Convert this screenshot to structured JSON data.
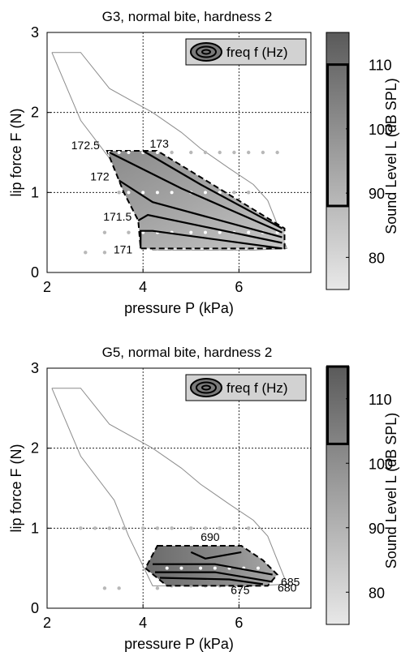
{
  "chart_data": [
    {
      "type": "contour",
      "title": "G3, normal bite, hardness 2",
      "xlabel": "pressure P (kPa)",
      "ylabel": "lip force F (N)",
      "xlim": [
        2,
        7.5
      ],
      "ylim": [
        0,
        3
      ],
      "xticks": [
        "2",
        "4",
        "6"
      ],
      "yticks": [
        "0",
        "1",
        "2",
        "3"
      ],
      "grid": "dotted",
      "legend": {
        "label": "freq f (Hz)",
        "position": "top-right"
      },
      "colorbar": {
        "label": "Sound Level L (dB SPL)",
        "range": [
          75,
          115
        ],
        "ticks": [
          "80",
          "90",
          "100",
          "110"
        ],
        "highlight": [
          88,
          110
        ]
      },
      "outline": [
        [
          2.1,
          2.75
        ],
        [
          2.7,
          2.75
        ],
        [
          3.3,
          2.3
        ],
        [
          4.2,
          2.0
        ],
        [
          4.8,
          1.75
        ],
        [
          5.2,
          1.55
        ],
        [
          5.8,
          1.3
        ],
        [
          6.3,
          1.1
        ],
        [
          6.6,
          0.9
        ],
        [
          7.0,
          0.3
        ],
        [
          6.3,
          0.28
        ],
        [
          4.2,
          0.28
        ],
        [
          3.7,
          0.9
        ],
        [
          3.4,
          1.35
        ],
        [
          2.7,
          1.9
        ],
        [
          2.1,
          2.75
        ]
      ],
      "region": [
        [
          3.25,
          1.52
        ],
        [
          4.3,
          1.52
        ],
        [
          6.95,
          0.55
        ],
        [
          6.95,
          0.3
        ],
        [
          3.95,
          0.3
        ],
        [
          3.9,
          0.65
        ],
        [
          3.6,
          1.0
        ],
        [
          3.25,
          1.52
        ]
      ],
      "contours": [
        {
          "label": "171",
          "points": [
            [
              3.95,
              0.3
            ],
            [
              3.95,
              0.52
            ],
            [
              4.2,
              0.52
            ],
            [
              6.9,
              0.3
            ]
          ]
        },
        {
          "label": "171.5",
          "points": [
            [
              3.9,
              0.65
            ],
            [
              4.1,
              0.72
            ],
            [
              6.9,
              0.37
            ]
          ]
        },
        {
          "label": "172",
          "points": [
            [
              3.5,
              1.15
            ],
            [
              4.2,
              0.88
            ],
            [
              6.9,
              0.44
            ]
          ]
        },
        {
          "label": "172.5",
          "points": [
            [
              3.3,
              1.5
            ],
            [
              4.8,
              1.05
            ],
            [
              6.9,
              0.5
            ]
          ]
        },
        {
          "label": "173",
          "points": [
            [
              4.0,
              1.52
            ],
            [
              5.2,
              1.1
            ],
            [
              6.9,
              0.55
            ]
          ]
        }
      ],
      "sample_points": [
        [
          3.3,
          1.5
        ],
        [
          3.5,
          1.5
        ],
        [
          3.7,
          1.5
        ],
        [
          4.0,
          1.5
        ],
        [
          4.3,
          1.5
        ],
        [
          4.6,
          1.5
        ],
        [
          5.0,
          1.5
        ],
        [
          5.3,
          1.5
        ],
        [
          5.6,
          1.5
        ],
        [
          5.9,
          1.5
        ],
        [
          6.2,
          1.5
        ],
        [
          6.5,
          1.5
        ],
        [
          6.8,
          1.5
        ],
        [
          3.5,
          1.0
        ],
        [
          3.7,
          1.0
        ],
        [
          4.0,
          1.0
        ],
        [
          4.3,
          1.0
        ],
        [
          4.6,
          1.0
        ],
        [
          5.0,
          1.0
        ],
        [
          5.3,
          1.0
        ],
        [
          5.6,
          1.0
        ],
        [
          5.9,
          1.0
        ],
        [
          6.2,
          1.0
        ],
        [
          3.2,
          0.5
        ],
        [
          3.7,
          0.5
        ],
        [
          4.0,
          0.5
        ],
        [
          4.3,
          0.5
        ],
        [
          4.6,
          0.5
        ],
        [
          5.0,
          0.5
        ],
        [
          5.3,
          0.5
        ],
        [
          5.6,
          0.5
        ],
        [
          5.9,
          0.5
        ],
        [
          6.2,
          0.5
        ],
        [
          6.5,
          0.5
        ],
        [
          6.8,
          0.5
        ],
        [
          2.8,
          0.25
        ],
        [
          3.2,
          0.25
        ],
        [
          4.3,
          0.3
        ],
        [
          4.6,
          0.3
        ],
        [
          5.0,
          0.3
        ],
        [
          5.3,
          0.3
        ],
        [
          5.6,
          0.3
        ],
        [
          5.9,
          0.3
        ],
        [
          6.2,
          0.3
        ]
      ]
    },
    {
      "type": "contour",
      "title": "G5, normal bite, hardness 2",
      "xlabel": "pressure P (kPa)",
      "ylabel": "lip force F (N)",
      "xlim": [
        2,
        7.5
      ],
      "ylim": [
        0,
        3
      ],
      "xticks": [
        "2",
        "4",
        "6"
      ],
      "yticks": [
        "0",
        "1",
        "2",
        "3"
      ],
      "grid": "dotted",
      "legend": {
        "label": "freq f (Hz)",
        "position": "top-right"
      },
      "colorbar": {
        "label": "Sound Level L (dB SPL)",
        "range": [
          75,
          115
        ],
        "ticks": [
          "80",
          "90",
          "100",
          "110"
        ],
        "highlight": [
          103,
          115
        ]
      },
      "outline": [
        [
          2.1,
          2.75
        ],
        [
          2.7,
          2.75
        ],
        [
          3.3,
          2.3
        ],
        [
          4.2,
          2.0
        ],
        [
          4.8,
          1.75
        ],
        [
          5.2,
          1.55
        ],
        [
          5.8,
          1.3
        ],
        [
          6.3,
          1.1
        ],
        [
          6.6,
          0.9
        ],
        [
          7.0,
          0.3
        ],
        [
          6.3,
          0.28
        ],
        [
          4.2,
          0.28
        ],
        [
          3.7,
          0.9
        ],
        [
          3.4,
          1.35
        ],
        [
          2.7,
          1.9
        ],
        [
          2.1,
          2.75
        ]
      ],
      "region": [
        [
          4.3,
          0.78
        ],
        [
          6.05,
          0.78
        ],
        [
          6.5,
          0.6
        ],
        [
          6.8,
          0.42
        ],
        [
          6.6,
          0.28
        ],
        [
          4.5,
          0.28
        ],
        [
          4.05,
          0.5
        ],
        [
          4.3,
          0.78
        ]
      ],
      "contours": [
        {
          "label": "690",
          "points": [
            [
              5.0,
              0.7
            ],
            [
              5.3,
              0.62
            ],
            [
              6.05,
              0.7
            ]
          ]
        },
        {
          "label": "685",
          "points": [
            [
              4.2,
              0.55
            ],
            [
              5.5,
              0.55
            ],
            [
              6.7,
              0.42
            ]
          ]
        },
        {
          "label": "680",
          "points": [
            [
              4.25,
              0.45
            ],
            [
              5.5,
              0.45
            ],
            [
              6.7,
              0.33
            ]
          ]
        },
        {
          "label": "675",
          "points": [
            [
              4.35,
              0.38
            ],
            [
              5.8,
              0.36
            ],
            [
              6.5,
              0.3
            ]
          ]
        }
      ],
      "sample_points": [
        [
          2.7,
          1.0
        ],
        [
          3.0,
          1.0
        ],
        [
          3.3,
          1.0
        ],
        [
          3.6,
          1.0
        ],
        [
          4.0,
          1.0
        ],
        [
          4.3,
          1.0
        ],
        [
          4.6,
          1.0
        ],
        [
          5.0,
          1.0
        ],
        [
          5.3,
          1.0
        ],
        [
          5.6,
          1.0
        ],
        [
          5.9,
          1.0
        ],
        [
          6.2,
          1.0
        ],
        [
          4.5,
          0.5
        ],
        [
          4.8,
          0.5
        ],
        [
          5.2,
          0.5
        ],
        [
          5.5,
          0.5
        ],
        [
          5.8,
          0.5
        ],
        [
          6.1,
          0.5
        ],
        [
          6.4,
          0.5
        ],
        [
          3.2,
          0.25
        ],
        [
          3.5,
          0.25
        ],
        [
          4.3,
          0.25
        ],
        [
          4.6,
          0.28
        ],
        [
          5.0,
          0.28
        ],
        [
          5.3,
          0.28
        ],
        [
          5.6,
          0.28
        ],
        [
          5.9,
          0.28
        ]
      ]
    }
  ]
}
